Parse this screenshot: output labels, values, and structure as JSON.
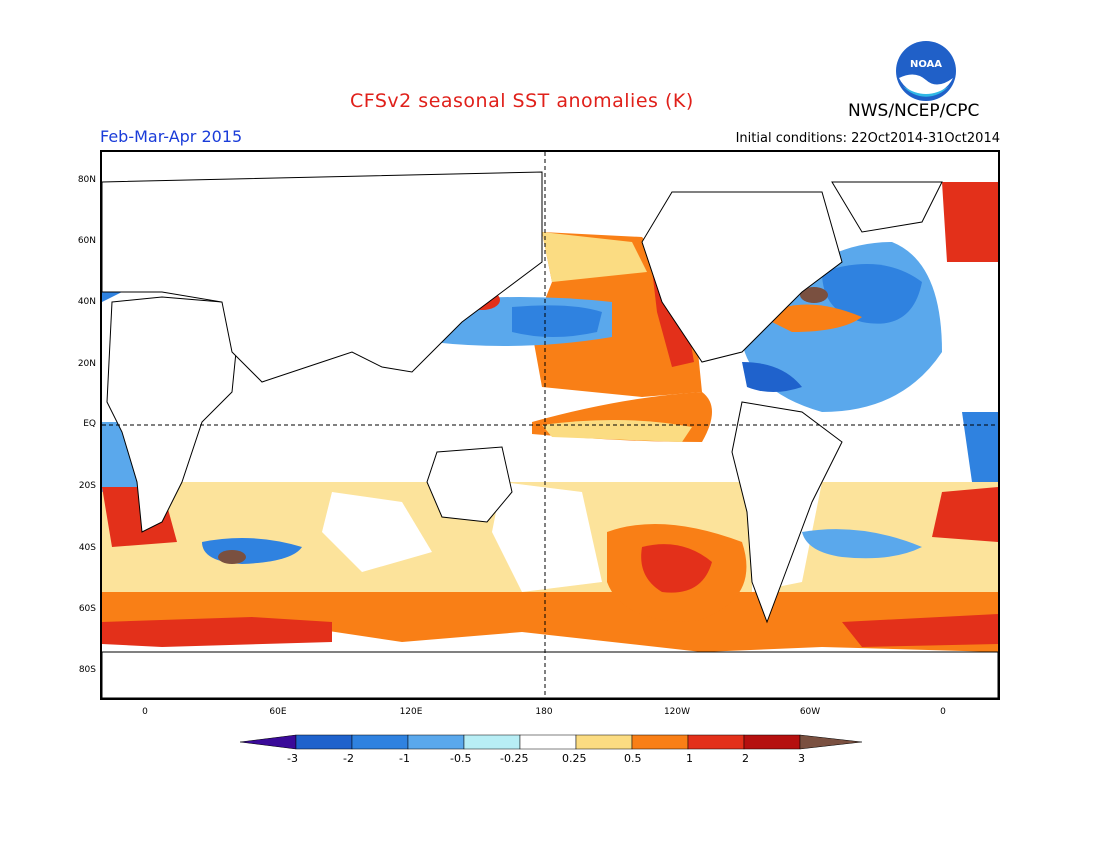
{
  "header": {
    "title": "CFSv2 seasonal SST anomalies (K)",
    "organization": "NWS/NCEP/CPC",
    "period": "Feb-Mar-Apr 2015",
    "initial_conditions": "Initial conditions: 22Oct2014-31Oct2014",
    "logo_text": "NOAA"
  },
  "map": {
    "lat_labels": [
      "80N",
      "60N",
      "40N",
      "20N",
      "EQ",
      "20S",
      "40S",
      "60S",
      "80S"
    ],
    "lon_labels": [
      "0",
      "60E",
      "120E",
      "180",
      "120W",
      "60W",
      "0"
    ]
  },
  "colorbar": {
    "labels": [
      "-3",
      "-2",
      "-1",
      "-0.5",
      "-0.25",
      "0.25",
      "0.5",
      "1",
      "2",
      "3"
    ],
    "colors": {
      "lt_m3": "#3a0a99",
      "m3_m2": "#1f62cc",
      "m2_m1": "#2f82e0",
      "m1_m05": "#5aa8ec",
      "m05_m025": "#b8eef5",
      "m025_025": "#ffffff",
      "p025_p05": "#fbdc82",
      "p05_p1": "#f97f16",
      "p1_p2": "#e3301a",
      "p2_p3": "#b5100f",
      "gt_p3": "#7a5040"
    }
  }
}
